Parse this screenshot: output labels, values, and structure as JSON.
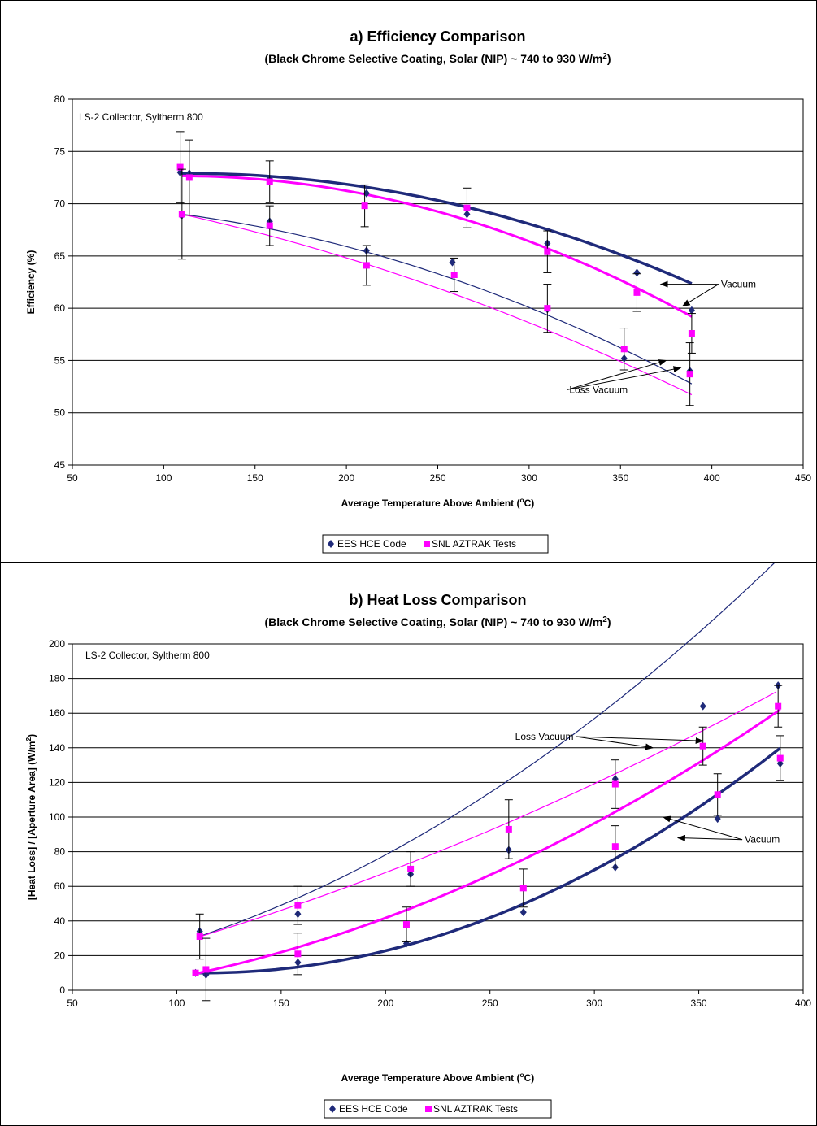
{
  "legend_labels": [
    "EES HCE Code",
    "SNL AZTRAK Tests"
  ],
  "colors": {
    "ees": "#1f2a7a",
    "snl": "#ff00ff",
    "grid": "#000000"
  },
  "chart_data": [
    {
      "type": "scatter",
      "title": "a) Efficiency Comparison",
      "subtitle": "(Black Chrome Selective Coating, Solar (NIP) ~ 740 to 930 W/m",
      "subtitle_sup": "2",
      "subtitle_end": ")",
      "note": "LS-2 Collector, Syltherm 800",
      "xlabel": "Average Temperature Above Ambient (",
      "xlabel_sup": "o",
      "xlabel_end": "C)",
      "ylabel": "Efficiency (%)",
      "xlim": [
        50,
        450
      ],
      "ylim": [
        45,
        80
      ],
      "xticks": [
        50,
        100,
        150,
        200,
        250,
        300,
        350,
        400,
        450
      ],
      "yticks": [
        45,
        50,
        55,
        60,
        65,
        70,
        75,
        80
      ],
      "grid": "horizontal",
      "legend_position": "bottom",
      "series": [
        {
          "name": "EES HCE Code",
          "marker": "diamond",
          "x": [
            109,
            114,
            158,
            211,
            266,
            310,
            359,
            389,
            110,
            158,
            211,
            258,
            310,
            352,
            388
          ],
          "y": [
            73.0,
            72.9,
            72.4,
            71.0,
            69.0,
            66.2,
            63.4,
            59.8,
            68.9,
            68.3,
            65.5,
            64.4,
            59.9,
            55.2,
            54.0
          ]
        },
        {
          "name": "SNL AZTRAK Tests",
          "marker": "square",
          "x": [
            109,
            114,
            158,
            210,
            266,
            310,
            359,
            389,
            110,
            158,
            211,
            259,
            310,
            352,
            388
          ],
          "y": [
            73.5,
            72.5,
            72.1,
            69.8,
            69.6,
            65.4,
            61.5,
            57.6,
            69.0,
            67.9,
            64.1,
            63.2,
            60.0,
            56.1,
            53.7
          ],
          "error": [
            3.4,
            3.6,
            2.0,
            2.0,
            1.9,
            2.0,
            1.8,
            1.9,
            4.3,
            1.9,
            1.9,
            1.6,
            2.3,
            2.0,
            3.0
          ]
        }
      ],
      "trendlines": [
        {
          "color_key": "ees",
          "width": 3.5,
          "x": [
            110,
            389
          ],
          "coef": [
            -0.000139,
            0.0316,
            71.1
          ]
        },
        {
          "color_key": "snl",
          "width": 3,
          "x": [
            110,
            389
          ],
          "coef": [
            -0.000172,
            0.0376,
            70.6
          ]
        },
        {
          "color_key": "ees",
          "width": 1.2,
          "x": [
            110,
            389
          ],
          "coef": [
            -0.000126,
            0.0047,
            70.0
          ]
        },
        {
          "color_key": "snl",
          "width": 1.2,
          "x": [
            110,
            389
          ],
          "coef": [
            -8.2e-05,
            -0.021,
            72.3
          ]
        }
      ],
      "annotations": [
        {
          "text": "Vacuum",
          "tx": 405,
          "ty": 62.3,
          "anchor": "start",
          "arrows": [
            [
              372,
              62.3
            ],
            [
              384,
              60.2
            ]
          ]
        },
        {
          "text": "Loss Vacuum",
          "tx": 322,
          "ty": 52.2,
          "anchor": "start",
          "arrows": [
            [
              375,
              55.0
            ],
            [
              383,
              54.3
            ]
          ]
        }
      ]
    },
    {
      "type": "scatter",
      "title": "b) Heat Loss Comparison",
      "subtitle": "(Black Chrome Selective Coating, Solar (NIP) ~ 740 to 930 W/m",
      "subtitle_sup": "2",
      "subtitle_end": ")",
      "note": "LS-2 Collector, Syltherm 800",
      "xlabel": "Average Temperature Above Ambient (",
      "xlabel_sup": "o",
      "xlabel_end": "C)",
      "ylabel": "[Heat Loss] / [Aperture Area] (W/m",
      "ylabel_sup": "2",
      "ylabel_end": ")",
      "xlim": [
        50,
        400
      ],
      "ylim": [
        0,
        200
      ],
      "xticks": [
        50,
        100,
        150,
        200,
        250,
        300,
        350,
        400
      ],
      "yticks": [
        0,
        20,
        40,
        60,
        80,
        100,
        120,
        140,
        160,
        180,
        200
      ],
      "grid": "horizontal",
      "legend_position": "bottom",
      "series": [
        {
          "name": "EES HCE Code",
          "marker": "diamond",
          "x": [
            111,
            158,
            212,
            259,
            310,
            352,
            388,
            109,
            114,
            158,
            210,
            266,
            310,
            359,
            389
          ],
          "y": [
            34,
            44,
            67,
            81,
            122,
            164,
            176,
            10,
            9,
            16,
            27,
            45,
            71,
            99,
            131
          ]
        },
        {
          "name": "SNL AZTRAK Tests",
          "marker": "square",
          "x": [
            111,
            158,
            212,
            259,
            310,
            352,
            388,
            109,
            114,
            158,
            210,
            266,
            310,
            359,
            389
          ],
          "y": [
            31,
            49,
            70,
            93,
            119,
            141,
            164,
            10,
            12,
            21,
            38,
            59,
            83,
            113,
            134
          ],
          "error": [
            13,
            11,
            10,
            17,
            14,
            11,
            12,
            0,
            18,
            12,
            10,
            11,
            12,
            12,
            13
          ]
        }
      ],
      "trendlines": [
        {
          "color_key": "ees",
          "width": 1.2,
          "x": [
            110,
            387
          ],
          "coef": [
            0.00137,
            0.102,
            3.0
          ]
        },
        {
          "color_key": "snl",
          "width": 1.2,
          "x": [
            110,
            387
          ],
          "coef": [
            0.000513,
            0.2567,
            -3.9
          ]
        },
        {
          "color_key": "ees",
          "width": 3.5,
          "x": [
            110,
            389
          ],
          "coef": [
            0.00171,
            -0.388,
            32.0
          ]
        },
        {
          "color_key": "snl",
          "width": 3,
          "x": [
            110,
            389
          ],
          "coef": [
            0.00101,
            0.0417,
            -7.0
          ]
        }
      ],
      "annotations": [
        {
          "text": "Loss Vacuum",
          "tx": 290,
          "ty": 146.5,
          "anchor": "end",
          "arrows": [
            [
              328,
              140
            ],
            [
              352,
              144
            ]
          ]
        },
        {
          "text": "Vacuum",
          "tx": 372,
          "ty": 87,
          "anchor": "start",
          "arrows": [
            [
              333,
              100
            ],
            [
              340,
              88
            ]
          ]
        }
      ]
    }
  ]
}
